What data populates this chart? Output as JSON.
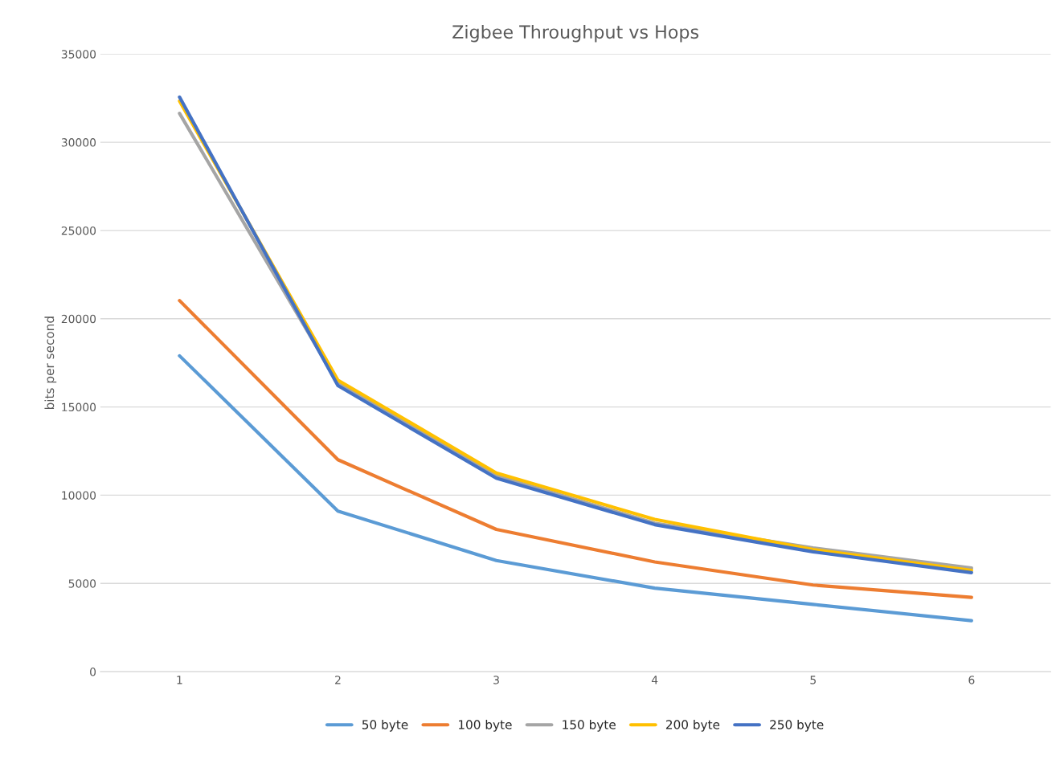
{
  "chart_data": {
    "type": "line",
    "title": "Zigbee Throughput vs Hops",
    "ylabel": "bits per second",
    "categories": [
      "1",
      "2",
      "3",
      "4",
      "5",
      "6"
    ],
    "series": [
      {
        "name": "50 byte",
        "color": "#5b9bd5",
        "values": [
          17900,
          9100,
          6300,
          4730,
          3810,
          2890
        ]
      },
      {
        "name": "100 byte",
        "color": "#ed7d31",
        "values": [
          21030,
          12010,
          8060,
          6220,
          4910,
          4210
        ]
      },
      {
        "name": "150 byte",
        "color": "#a5a5a5",
        "values": [
          31640,
          16350,
          11100,
          8410,
          7010,
          5870
        ]
      },
      {
        "name": "200 byte",
        "color": "#ffc000",
        "values": [
          32340,
          16520,
          11260,
          8630,
          6920,
          5740
        ]
      },
      {
        "name": "250 byte",
        "color": "#4472c4",
        "values": [
          32560,
          16210,
          10960,
          8330,
          6790,
          5610
        ]
      }
    ],
    "ylim": [
      0,
      35000
    ],
    "yticks": [
      0,
      5000,
      10000,
      15000,
      20000,
      25000,
      30000,
      35000
    ],
    "grid": "y",
    "legend": "bottom",
    "marker": "none",
    "line_style": "solid"
  }
}
